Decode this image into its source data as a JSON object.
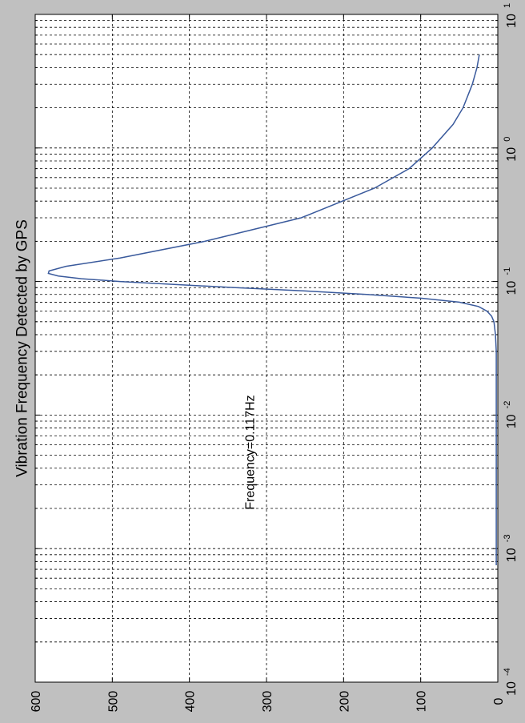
{
  "chart_data": {
    "type": "line",
    "title": "Vibration Frequency Detected by GPS",
    "orientation": "rotated 90° counter-clockwise",
    "x_scale": "log",
    "xlim": [
      0.0001,
      10
    ],
    "x_tick_labels": [
      {
        "base": "10",
        "exp": "-4"
      },
      {
        "base": "10",
        "exp": "-3"
      },
      {
        "base": "10",
        "exp": "-2"
      },
      {
        "base": "10",
        "exp": "-1"
      },
      {
        "base": "10",
        "exp": "0"
      },
      {
        "base": "10",
        "exp": "1"
      }
    ],
    "ylim": [
      0,
      600
    ],
    "y_ticks": [
      0,
      100,
      200,
      300,
      400,
      500,
      600
    ],
    "grid": true,
    "annotation": "Frequency=0.117Hz",
    "line_color": "#3a5a9c",
    "series": [
      {
        "x": [
          0.00075,
          0.001,
          0.003,
          0.01,
          0.02,
          0.03,
          0.04,
          0.05,
          0.055,
          0.06,
          0.065,
          0.07,
          0.075,
          0.08,
          0.085,
          0.09,
          0.095,
          0.1,
          0.105,
          0.11,
          0.115,
          0.12,
          0.13,
          0.15,
          0.2,
          0.3,
          0.5,
          0.7,
          1,
          1.5,
          2,
          3,
          4,
          5
        ],
        "y": [
          2,
          2,
          2,
          2,
          2,
          2,
          3,
          5,
          8,
          14,
          25,
          50,
          100,
          170,
          250,
          340,
          420,
          490,
          540,
          570,
          583,
          582,
          560,
          490,
          380,
          255,
          160,
          115,
          85,
          58,
          45,
          33,
          27,
          24
        ]
      }
    ]
  }
}
